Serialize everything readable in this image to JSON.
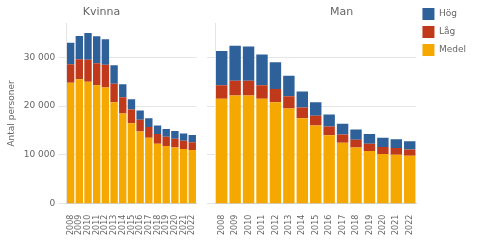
{
  "chart_data": [
    {
      "type": "bar",
      "title": "Kvinna",
      "ylabel": "Antal personer",
      "stacked": true,
      "grid": true,
      "categories": [
        "2008",
        "2009",
        "2010",
        "2011",
        "2012",
        "2013",
        "2014",
        "2015",
        "2016",
        "2017",
        "2018",
        "2019",
        "2020",
        "2021",
        "2022"
      ],
      "series": [
        {
          "name": "Medel",
          "color": "#F5A800",
          "values": [
            24800,
            25500,
            25000,
            24300,
            23800,
            20800,
            18500,
            16500,
            14800,
            13500,
            12300,
            11800,
            11500,
            11200,
            11000
          ]
        },
        {
          "name": "Låg",
          "color": "#C0391A",
          "values": [
            3800,
            4100,
            4500,
            4500,
            4700,
            3800,
            3300,
            2800,
            2400,
            2200,
            2000,
            1900,
            1800,
            1700,
            1600
          ]
        },
        {
          "name": "Hög",
          "color": "#2E6099",
          "values": [
            4400,
            4800,
            5500,
            5500,
            5200,
            3800,
            2700,
            2100,
            1900,
            1800,
            1700,
            1600,
            1600,
            1500,
            1500
          ]
        }
      ],
      "ylim": [
        0,
        37000
      ],
      "yticks": [
        0,
        {
          "value": 10000,
          "label": "10 000"
        },
        {
          "value": 20000,
          "label": "20 000"
        },
        {
          "value": 30000,
          "label": "30 000"
        }
      ]
    },
    {
      "type": "bar",
      "title": "Man",
      "stacked": true,
      "grid": true,
      "tick_labels": "x",
      "legend": "right",
      "categories": [
        "2008",
        "2009",
        "2010",
        "2011",
        "2012",
        "2013",
        "2014",
        "2015",
        "2016",
        "2017",
        "2018",
        "2019",
        "2020",
        "2021",
        "2022"
      ],
      "series": [
        {
          "name": "Medel",
          "color": "#F5A800",
          "values": [
            21500,
            22200,
            22200,
            21500,
            20800,
            19500,
            17500,
            16000,
            14000,
            12500,
            11500,
            10800,
            10200,
            10000,
            9800
          ]
        },
        {
          "name": "Låg",
          "color": "#C0391A",
          "values": [
            2800,
            3000,
            3000,
            2800,
            2700,
            2500,
            2200,
            2000,
            1800,
            1700,
            1600,
            1500,
            1400,
            1400,
            1300
          ]
        },
        {
          "name": "Hög",
          "color": "#2E6099",
          "values": [
            7000,
            7200,
            7000,
            6300,
            5500,
            4200,
            3300,
            2800,
            2500,
            2200,
            2100,
            2000,
            1900,
            1800,
            1700
          ]
        }
      ],
      "ylim": [
        0,
        37000
      ],
      "yticks": [
        0,
        {
          "value": 10000,
          "label": "10 000"
        },
        {
          "value": 20000,
          "label": "20 000"
        },
        {
          "value": 30000,
          "label": "30 000"
        }
      ]
    }
  ]
}
